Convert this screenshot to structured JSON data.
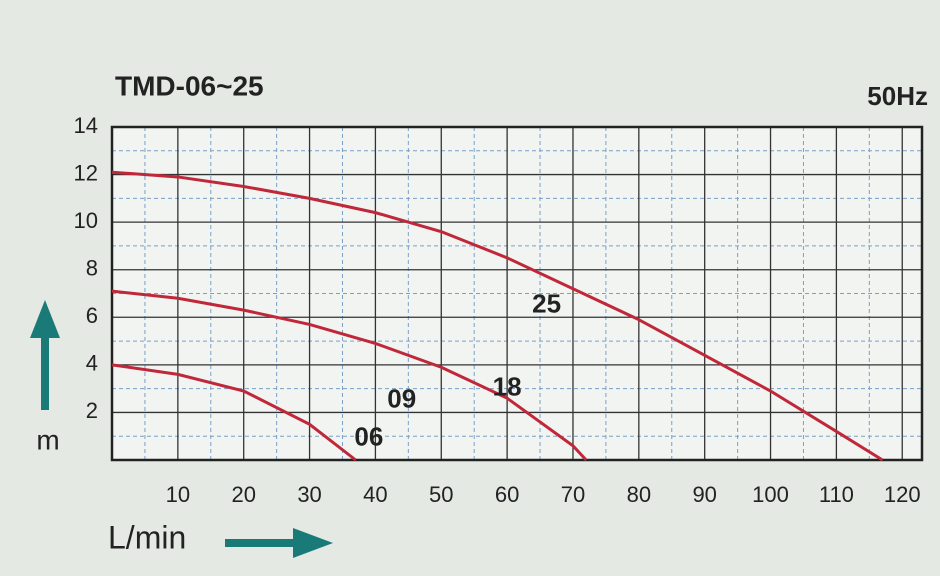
{
  "chart_data": {
    "type": "line",
    "title": "TMD-06~25",
    "subtitle": "50Hz",
    "x_label": "L/min",
    "y_label": "m",
    "xlim": [
      0,
      123
    ],
    "xticks": [
      10,
      20,
      30,
      40,
      50,
      60,
      70,
      80,
      90,
      100,
      110,
      120
    ],
    "ylim": [
      0,
      14
    ],
    "yticks": [
      2,
      4,
      6,
      8,
      10,
      12,
      14
    ],
    "grid": true,
    "series": [
      {
        "color": "#c0283a",
        "x": [
          0,
          10,
          20,
          30,
          37
        ],
        "values": [
          4,
          3.6,
          2.9,
          1.5,
          0
        ]
      },
      {
        "color": "#c0283a",
        "x": [
          0,
          10,
          20,
          30,
          40,
          50,
          60,
          70,
          72
        ],
        "values": [
          7.1,
          6.8,
          6.3,
          5.7,
          4.9,
          3.9,
          2.6,
          0.6,
          0
        ]
      },
      {
        "color": "#c0283a",
        "x": [
          0,
          10,
          20,
          30,
          40,
          50,
          60,
          70,
          80,
          90,
          100,
          110,
          117
        ],
        "values": [
          12.1,
          11.9,
          11.5,
          11,
          10.4,
          9.6,
          8.5,
          7.2,
          5.9,
          4.4,
          2.9,
          1.2,
          0
        ]
      }
    ],
    "annotations": [
      {
        "text": "06",
        "x": 39,
        "y": 0.9
      },
      {
        "text": "09",
        "x": 44,
        "y": 2.5
      },
      {
        "text": "18",
        "x": 60,
        "y": 3.0
      },
      {
        "text": "25",
        "x": 66,
        "y": 6.5
      }
    ]
  }
}
